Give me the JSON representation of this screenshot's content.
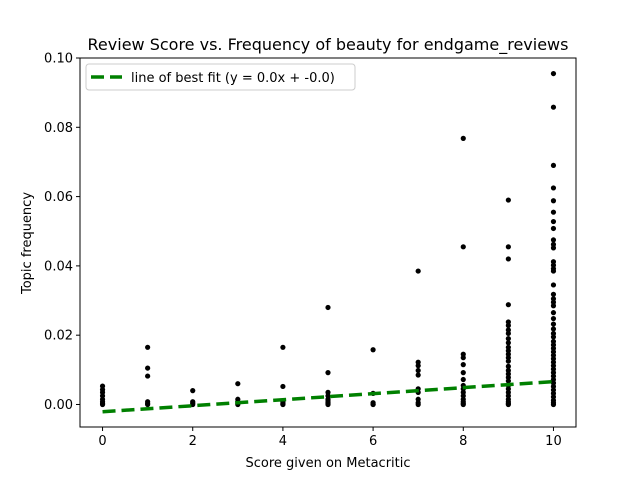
{
  "chart_data": {
    "type": "scatter",
    "title": "Review Score vs. Frequency of beauty for endgame_reviews",
    "xlabel": "Score given on Metacritic",
    "ylabel": "Topic frequency",
    "xlim": [
      -0.5,
      10.5
    ],
    "ylim": [
      -0.0065,
      0.1
    ],
    "xticks": [
      "0",
      "2",
      "4",
      "6",
      "8",
      "10"
    ],
    "yticks": [
      "0.00",
      "0.02",
      "0.04",
      "0.06",
      "0.08",
      "0.10"
    ],
    "grid": false,
    "legend_position": "top-left",
    "series": [
      {
        "name": "",
        "kind": "points",
        "color": "#000000",
        "points": [
          [
            0,
            0.0053
          ],
          [
            0,
            0.0043
          ],
          [
            0,
            0.0035
          ],
          [
            0,
            0.0025
          ],
          [
            0,
            0.0015
          ],
          [
            0,
            0.0008
          ],
          [
            0,
            0.0003
          ],
          [
            0,
            0.0
          ],
          [
            1,
            0.0165
          ],
          [
            1,
            0.0105
          ],
          [
            1,
            0.0082
          ],
          [
            1,
            0.0008
          ],
          [
            1,
            0.0003
          ],
          [
            1,
            0.0
          ],
          [
            2,
            0.004
          ],
          [
            2,
            0.0008
          ],
          [
            2,
            0.0004
          ],
          [
            2,
            0.0
          ],
          [
            3,
            0.006
          ],
          [
            3,
            0.0015
          ],
          [
            3,
            0.0008
          ],
          [
            3,
            0.0003
          ],
          [
            3,
            0.0
          ],
          [
            4,
            0.0165
          ],
          [
            4,
            0.0052
          ],
          [
            4,
            0.0008
          ],
          [
            4,
            0.0004
          ],
          [
            4,
            0.0001
          ],
          [
            4,
            0.0
          ],
          [
            5,
            0.028
          ],
          [
            5,
            0.0092
          ],
          [
            5,
            0.0035
          ],
          [
            5,
            0.0025
          ],
          [
            5,
            0.0015
          ],
          [
            5,
            0.001
          ],
          [
            5,
            0.0005
          ],
          [
            5,
            0.0002
          ],
          [
            5,
            0.0
          ],
          [
            6,
            0.0158
          ],
          [
            6,
            0.0032
          ],
          [
            6,
            0.0005
          ],
          [
            6,
            0.0001
          ],
          [
            6,
            0.0
          ],
          [
            7,
            0.0385
          ],
          [
            7,
            0.0122
          ],
          [
            7,
            0.0112
          ],
          [
            7,
            0.0098
          ],
          [
            7,
            0.0085
          ],
          [
            7,
            0.0045
          ],
          [
            7,
            0.0035
          ],
          [
            7,
            0.0015
          ],
          [
            7,
            0.0005
          ],
          [
            7,
            0.0
          ],
          [
            8,
            0.0768
          ],
          [
            8,
            0.0455
          ],
          [
            8,
            0.0145
          ],
          [
            8,
            0.0135
          ],
          [
            8,
            0.0115
          ],
          [
            8,
            0.0092
          ],
          [
            8,
            0.0072
          ],
          [
            8,
            0.0055
          ],
          [
            8,
            0.0045
          ],
          [
            8,
            0.0035
          ],
          [
            8,
            0.0025
          ],
          [
            8,
            0.0015
          ],
          [
            8,
            0.0008
          ],
          [
            8,
            0.0003
          ],
          [
            8,
            0.0
          ],
          [
            9,
            0.059
          ],
          [
            9,
            0.0455
          ],
          [
            9,
            0.042
          ],
          [
            9,
            0.0288
          ],
          [
            9,
            0.0238
          ],
          [
            9,
            0.0228
          ],
          [
            9,
            0.0215
          ],
          [
            9,
            0.0205
          ],
          [
            9,
            0.019
          ],
          [
            9,
            0.0178
          ],
          [
            9,
            0.0165
          ],
          [
            9,
            0.0155
          ],
          [
            9,
            0.0145
          ],
          [
            9,
            0.0135
          ],
          [
            9,
            0.0125
          ],
          [
            9,
            0.011
          ],
          [
            9,
            0.0098
          ],
          [
            9,
            0.0088
          ],
          [
            9,
            0.0078
          ],
          [
            9,
            0.0068
          ],
          [
            9,
            0.0055
          ],
          [
            9,
            0.0045
          ],
          [
            9,
            0.0035
          ],
          [
            9,
            0.0025
          ],
          [
            9,
            0.0015
          ],
          [
            9,
            0.0008
          ],
          [
            9,
            0.0003
          ],
          [
            9,
            0.0
          ],
          [
            10,
            0.0955
          ],
          [
            10,
            0.0858
          ],
          [
            10,
            0.069
          ],
          [
            10,
            0.0625
          ],
          [
            10,
            0.0588
          ],
          [
            10,
            0.0555
          ],
          [
            10,
            0.0528
          ],
          [
            10,
            0.0508
          ],
          [
            10,
            0.0475
          ],
          [
            10,
            0.0462
          ],
          [
            10,
            0.0452
          ],
          [
            10,
            0.0412
          ],
          [
            10,
            0.0402
          ],
          [
            10,
            0.0392
          ],
          [
            10,
            0.0385
          ],
          [
            10,
            0.0345
          ],
          [
            10,
            0.0318
          ],
          [
            10,
            0.0305
          ],
          [
            10,
            0.0295
          ],
          [
            10,
            0.0285
          ],
          [
            10,
            0.0265
          ],
          [
            10,
            0.0248
          ],
          [
            10,
            0.0232
          ],
          [
            10,
            0.0218
          ],
          [
            10,
            0.0205
          ],
          [
            10,
            0.0195
          ],
          [
            10,
            0.0182
          ],
          [
            10,
            0.0172
          ],
          [
            10,
            0.0162
          ],
          [
            10,
            0.0152
          ],
          [
            10,
            0.0142
          ],
          [
            10,
            0.0132
          ],
          [
            10,
            0.0122
          ],
          [
            10,
            0.0112
          ],
          [
            10,
            0.0102
          ],
          [
            10,
            0.0092
          ],
          [
            10,
            0.0082
          ],
          [
            10,
            0.0072
          ],
          [
            10,
            0.0062
          ],
          [
            10,
            0.0052
          ],
          [
            10,
            0.0042
          ],
          [
            10,
            0.0032
          ],
          [
            10,
            0.0022
          ],
          [
            10,
            0.0012
          ],
          [
            10,
            0.0005
          ],
          [
            10,
            0.0
          ]
        ]
      },
      {
        "name": "line of best fit (y = 0.0x + -0.0)",
        "kind": "line",
        "color": "#008000",
        "line_style": "dashed",
        "x": [
          0,
          10
        ],
        "y": [
          -0.0021,
          0.0066
        ]
      }
    ]
  }
}
